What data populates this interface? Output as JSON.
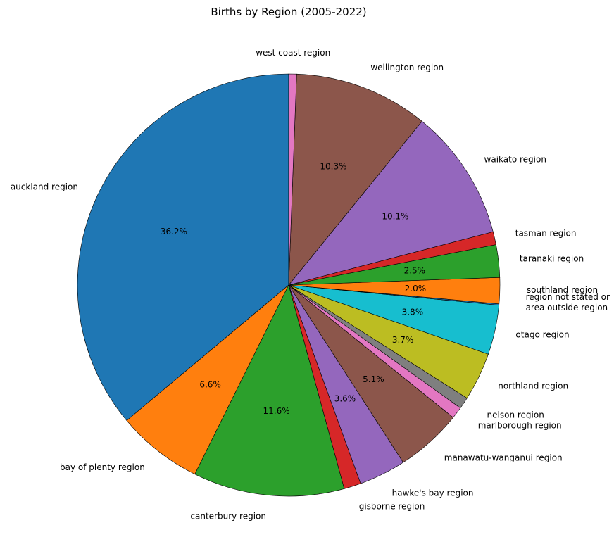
{
  "chart_data": {
    "type": "pie",
    "title": "Births by Region (2005-2022)",
    "start_angle_deg": 90,
    "direction": "counterclockwise",
    "slices": [
      {
        "label": "auckland region",
        "value": 36.2,
        "pct_label": "36.2%",
        "color": "#1f77b4"
      },
      {
        "label": "bay of plenty region",
        "value": 6.6,
        "pct_label": "6.6%",
        "color": "#ff7f0e"
      },
      {
        "label": "canterbury region",
        "value": 11.6,
        "pct_label": "11.6%",
        "color": "#2ca02c"
      },
      {
        "label": "gisborne region",
        "value": 1.3,
        "pct_label": "",
        "color": "#d62728"
      },
      {
        "label": "hawke's bay region",
        "value": 3.6,
        "pct_label": "3.6%",
        "color": "#9467bd"
      },
      {
        "label": "manawatu-wanganui region",
        "value": 5.1,
        "pct_label": "5.1%",
        "color": "#8c564b"
      },
      {
        "label": "marlborough region",
        "value": 0.9,
        "pct_label": "",
        "color": "#e377c2"
      },
      {
        "label": "nelson region",
        "value": 0.9,
        "pct_label": "",
        "color": "#7f7f7f"
      },
      {
        "label": "northland region",
        "value": 3.7,
        "pct_label": "3.7%",
        "color": "#bcbd22"
      },
      {
        "label": "otago region",
        "value": 3.8,
        "pct_label": "3.8%",
        "color": "#17becf"
      },
      {
        "label": "region not stated or area outside region",
        "value": 0.1,
        "pct_label": "",
        "color": "#1f77b4"
      },
      {
        "label": "southland region",
        "value": 2.0,
        "pct_label": "2.0%",
        "color": "#ff7f0e"
      },
      {
        "label": "taranaki region",
        "value": 2.5,
        "pct_label": "2.5%",
        "color": "#2ca02c"
      },
      {
        "label": "tasman region",
        "value": 1.0,
        "pct_label": "",
        "color": "#d62728"
      },
      {
        "label": "waikato region",
        "value": 10.1,
        "pct_label": "10.1%",
        "color": "#9467bd"
      },
      {
        "label": "wellington region",
        "value": 10.3,
        "pct_label": "10.3%",
        "color": "#8c564b"
      },
      {
        "label": "west coast region",
        "value": 0.6,
        "pct_label": "",
        "color": "#e377c2"
      }
    ]
  }
}
